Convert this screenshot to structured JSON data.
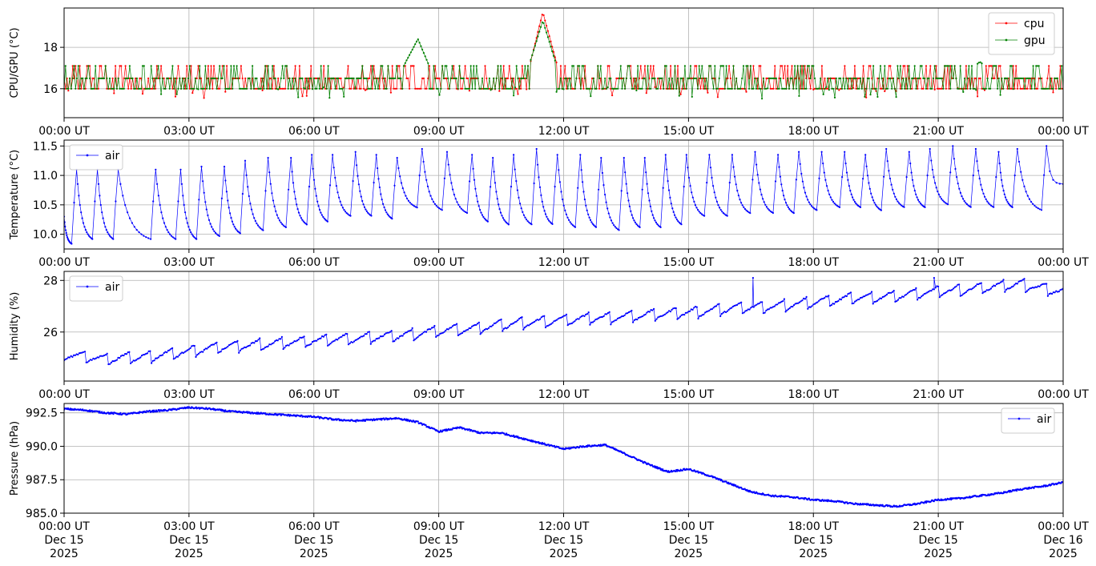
{
  "x_tick_labels": [
    "00:00 UT",
    "03:00 UT",
    "06:00 UT",
    "09:00 UT",
    "12:00 UT",
    "15:00 UT",
    "18:00 UT",
    "21:00 UT",
    "00:00 UT"
  ],
  "x_tick_date_labels": [
    [
      "Dec 15",
      "2025"
    ],
    [
      "Dec 15",
      "2025"
    ],
    [
      "Dec 15",
      "2025"
    ],
    [
      "Dec 15",
      "2025"
    ],
    [
      "Dec 15",
      "2025"
    ],
    [
      "Dec 15",
      "2025"
    ],
    [
      "Dec 15",
      "2025"
    ],
    [
      "Dec 15",
      "2025"
    ],
    [
      "Dec 16",
      "2025"
    ]
  ],
  "colors": {
    "cpu": "#ff0000",
    "gpu": "#008000",
    "air": "#0000ff",
    "grid": "#b0b0b0"
  },
  "chart_data": [
    {
      "type": "line",
      "ylabel": "CPU/GPU (°C)",
      "x_range": [
        "2025-12-15T00:00",
        "2025-12-16T00:00"
      ],
      "ylim": [
        14.6,
        19.9
      ],
      "yticks": [
        16,
        18
      ],
      "ytick_labels": [
        "16",
        "18"
      ],
      "grid": true,
      "legend": "top-right",
      "series": [
        {
          "name": "cpu",
          "color": "#ff0000",
          "hours": [
            0,
            0.5,
            1,
            1.5,
            2,
            2.5,
            3,
            3.5,
            4,
            4.5,
            5,
            5.5,
            6,
            6.5,
            7,
            7.5,
            8,
            8.5,
            9,
            9.5,
            10,
            10.5,
            11,
            11.5,
            12,
            12.5,
            13,
            13.5,
            14,
            14.5,
            15,
            15.5,
            16,
            16.5,
            17,
            17.5,
            18,
            18.5,
            19,
            19.5,
            20,
            20.5,
            21,
            21.5,
            22,
            22.5,
            23,
            23.5,
            24
          ],
          "values": [
            16.5,
            15.4,
            17.1,
            15.5,
            15.2,
            16.5,
            16.0,
            16.5,
            16.0,
            16.5,
            16.0,
            16.5,
            16.0,
            16.5,
            17.1,
            16.0,
            16.6,
            17.0,
            16.5,
            16.5,
            17.1,
            16.5,
            15.6,
            19.7,
            16.0,
            16.5,
            16.5,
            16.0,
            16.5,
            16.5,
            16.0,
            16.5,
            16.5,
            16.0,
            16.5,
            16.5,
            16.5,
            17.1,
            16.5,
            16.5,
            16.5,
            16.5,
            17.1,
            16.5,
            16.5,
            16.5,
            17.1,
            16.5,
            16.5
          ]
        },
        {
          "name": "gpu",
          "color": "#008000",
          "hours": [
            0,
            0.5,
            1,
            1.5,
            2,
            2.5,
            3,
            3.5,
            4,
            4.5,
            5,
            5.5,
            6,
            6.5,
            7,
            7.5,
            8,
            8.5,
            9,
            9.5,
            10,
            10.5,
            11,
            11.5,
            12,
            12.5,
            13,
            13.5,
            14,
            14.5,
            15,
            15.5,
            16,
            16.5,
            17,
            17.5,
            18,
            18.5,
            19,
            19.5,
            20,
            20.5,
            21,
            21.5,
            22,
            22.5,
            23,
            23.5,
            24
          ],
          "values": [
            16.0,
            16.0,
            17.0,
            16.0,
            16.0,
            16.0,
            16.0,
            16.5,
            16.0,
            16.5,
            16.0,
            16.5,
            16.0,
            16.5,
            16.5,
            16.0,
            16.5,
            18.4,
            16.0,
            16.5,
            16.5,
            16.5,
            16.0,
            19.3,
            16.0,
            16.5,
            16.5,
            16.0,
            16.5,
            16.5,
            16.0,
            16.5,
            16.5,
            16.0,
            16.5,
            16.5,
            16.5,
            16.5,
            16.5,
            16.5,
            16.5,
            16.5,
            17.0,
            16.5,
            17.3,
            16.5,
            16.5,
            16.5,
            16.5
          ]
        }
      ]
    },
    {
      "type": "line",
      "ylabel": "Temperature (°C)",
      "x_range": [
        "2025-12-15T00:00",
        "2025-12-16T00:00"
      ],
      "ylim": [
        9.75,
        11.6
      ],
      "yticks": [
        10.0,
        10.5,
        11.0,
        11.5
      ],
      "ytick_labels": [
        "10.0",
        "10.5",
        "11.0",
        "11.5"
      ],
      "grid": true,
      "legend": "top-left",
      "series": [
        {
          "name": "air",
          "color": "#0000ff",
          "cycle_peak_hours": [
            0.3,
            0.8,
            1.3,
            2.2,
            2.8,
            3.3,
            3.85,
            4.35,
            4.9,
            5.45,
            5.95,
            6.45,
            7.0,
            7.5,
            8.0,
            8.6,
            9.2,
            9.8,
            10.3,
            10.8,
            11.35,
            11.85,
            12.4,
            12.9,
            13.45,
            13.95,
            14.45,
            14.95,
            15.5,
            16.05,
            16.6,
            17.15,
            17.65,
            18.2,
            18.75,
            19.25,
            19.75,
            20.3,
            20.8,
            21.35,
            21.9,
            22.45,
            22.9,
            23.6
          ],
          "cycle_peaks": [
            11.1,
            11.1,
            11.1,
            11.1,
            11.1,
            11.15,
            11.15,
            11.25,
            11.3,
            11.3,
            11.35,
            11.35,
            11.4,
            11.35,
            11.3,
            11.45,
            11.4,
            11.35,
            11.3,
            11.35,
            11.45,
            11.35,
            11.35,
            11.3,
            11.3,
            11.3,
            11.35,
            11.35,
            11.35,
            11.35,
            11.4,
            11.35,
            11.4,
            11.4,
            11.4,
            11.35,
            11.45,
            11.4,
            11.45,
            11.5,
            11.45,
            11.4,
            11.45,
            11.5
          ],
          "cycle_troughs": [
            9.85,
            9.9,
            9.9,
            9.9,
            9.9,
            9.9,
            9.95,
            10.0,
            10.05,
            10.1,
            10.15,
            10.2,
            10.3,
            10.3,
            10.25,
            10.45,
            10.4,
            10.35,
            10.2,
            10.15,
            10.15,
            10.15,
            10.1,
            10.1,
            10.05,
            10.1,
            10.1,
            10.15,
            10.3,
            10.3,
            10.35,
            10.35,
            10.35,
            10.4,
            10.45,
            10.45,
            10.4,
            10.45,
            10.45,
            10.5,
            10.45,
            10.45,
            10.45,
            10.4
          ],
          "end_value": 10.85
        }
      ]
    },
    {
      "type": "line",
      "ylabel": "Humidity (%)",
      "x_range": [
        "2025-12-15T00:00",
        "2025-12-16T00:00"
      ],
      "ylim": [
        24.1,
        28.35
      ],
      "yticks": [
        26,
        28
      ],
      "ytick_labels": [
        "26",
        "28"
      ],
      "grid": true,
      "legend": "top-left",
      "series": [
        {
          "name": "air",
          "color": "#0000ff",
          "hours": [
            0,
            1,
            2,
            3,
            4,
            5,
            6,
            7,
            8,
            9,
            10,
            11,
            12,
            13,
            14,
            15,
            16,
            17,
            18,
            19,
            20,
            21,
            22,
            23,
            24
          ],
          "baseline_values": [
            25.2,
            25.0,
            25.1,
            25.3,
            25.5,
            25.6,
            25.7,
            25.8,
            25.9,
            26.1,
            26.2,
            26.4,
            26.5,
            26.6,
            26.7,
            26.8,
            26.95,
            27.05,
            27.2,
            27.35,
            27.45,
            27.6,
            27.75,
            27.9,
            27.6
          ],
          "swing_amplitude": 0.55,
          "peak_values": [
            25.5,
            25.6,
            25.6,
            25.9,
            26.0,
            26.1,
            26.1,
            26.2,
            26.4,
            26.5,
            26.6,
            26.7,
            26.8,
            26.9,
            26.95,
            27.0,
            27.2,
            27.3,
            27.4,
            27.6,
            27.7,
            28.0,
            27.9,
            28.1,
            28.1
          ],
          "spikes": [
            {
              "hour": 16.55,
              "value": 28.1
            },
            {
              "hour": 20.9,
              "value": 28.1
            }
          ]
        }
      ]
    },
    {
      "type": "line",
      "ylabel": "Pressure (hPa)",
      "x_range": [
        "2025-12-15T00:00",
        "2025-12-16T00:00"
      ],
      "ylim": [
        985.0,
        993.2
      ],
      "yticks": [
        985.0,
        987.5,
        990.0,
        992.5
      ],
      "ytick_labels": [
        "985.0",
        "987.5",
        "990.0",
        "992.5"
      ],
      "grid": true,
      "legend": "top-right",
      "series": [
        {
          "name": "air",
          "color": "#0000ff",
          "hours": [
            0,
            0.5,
            1,
            1.5,
            2,
            2.5,
            3,
            3.5,
            4,
            4.5,
            5,
            5.5,
            6,
            6.5,
            7,
            7.5,
            8,
            8.5,
            9,
            9.5,
            10,
            10.5,
            11,
            11.5,
            12,
            12.5,
            13,
            13.5,
            14,
            14.5,
            15,
            15.5,
            16,
            16.5,
            17,
            17.5,
            18,
            18.5,
            19,
            19.5,
            20,
            20.5,
            21,
            21.5,
            22,
            22.5,
            23,
            23.5,
            24
          ],
          "values": [
            992.8,
            992.7,
            992.5,
            992.4,
            992.6,
            992.7,
            992.9,
            992.8,
            992.6,
            992.5,
            992.4,
            992.3,
            992.2,
            992.0,
            991.9,
            992.0,
            992.1,
            991.8,
            991.1,
            991.4,
            991.0,
            991.0,
            990.6,
            990.2,
            989.8,
            990.0,
            990.1,
            989.4,
            988.7,
            988.1,
            988.3,
            987.8,
            987.2,
            986.6,
            986.3,
            986.2,
            986.0,
            985.9,
            985.7,
            985.6,
            985.5,
            985.7,
            986.0,
            986.1,
            986.3,
            986.5,
            986.8,
            987.0,
            987.3
          ]
        }
      ]
    }
  ]
}
